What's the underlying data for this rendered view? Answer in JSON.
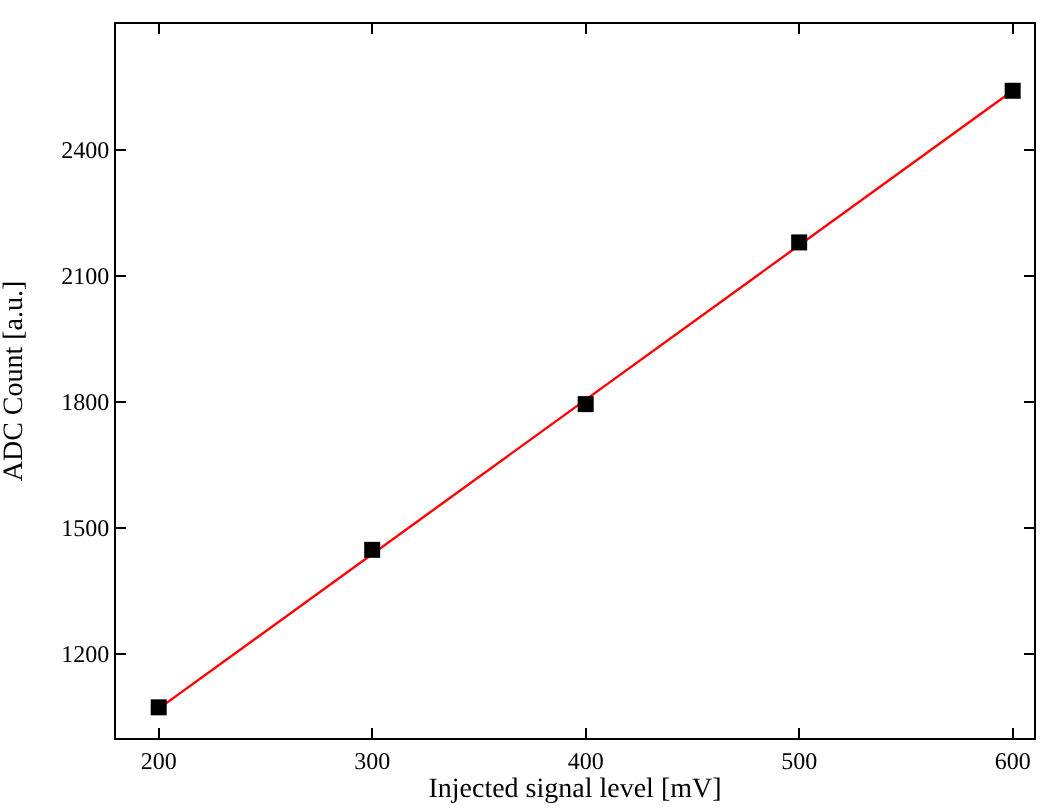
{
  "chart_data": {
    "type": "scatter",
    "xlabel": "Injected signal level [mV]",
    "ylabel": "ADC Count [a.u.]",
    "series": [
      {
        "type": "line",
        "color": "#ff0000",
        "x": [
          200,
          600
        ],
        "values": [
          1070,
          2541
        ],
        "marker": "none",
        "line_style": "solid"
      },
      {
        "color": "#000000",
        "x": [
          200,
          300,
          400,
          500,
          600
        ],
        "values": [
          1073,
          1448,
          1795,
          2180,
          2541
        ],
        "marker": "square"
      }
    ],
    "xlim": [
      180,
      610
    ],
    "xticks": [
      200,
      300,
      400,
      500,
      600
    ],
    "ylim": [
      1000,
      2700
    ],
    "yticks": [
      1200,
      1500,
      1800,
      2100,
      2400
    ]
  }
}
